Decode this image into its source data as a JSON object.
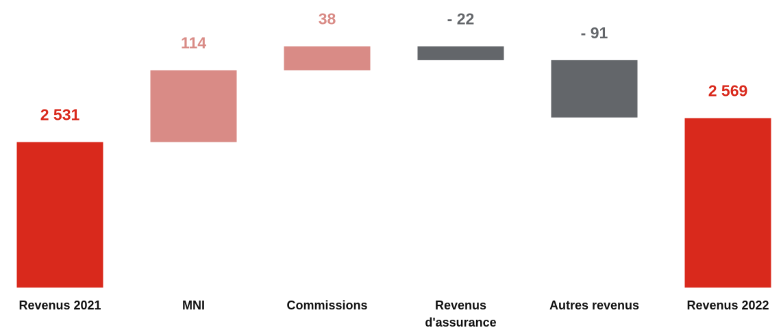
{
  "chart_data": {
    "type": "waterfall",
    "categories": [
      "Revenus 2021",
      "MNI",
      "Commissions",
      "Revenus d'assurance",
      "Autres revenus",
      "Revenus 2022"
    ],
    "values": [
      2531,
      114,
      38,
      -22,
      -91,
      2569
    ],
    "value_labels": [
      "2 531",
      "114",
      "38",
      "- 22",
      "- 91",
      "2 569"
    ],
    "measure": [
      "absolute",
      "relative",
      "relative",
      "relative",
      "relative",
      "absolute"
    ],
    "colors": {
      "absolute": "#d9291c",
      "increase": "#d98b86",
      "decrease": "#63666a"
    },
    "ylim": [
      2300,
      2750
    ]
  }
}
